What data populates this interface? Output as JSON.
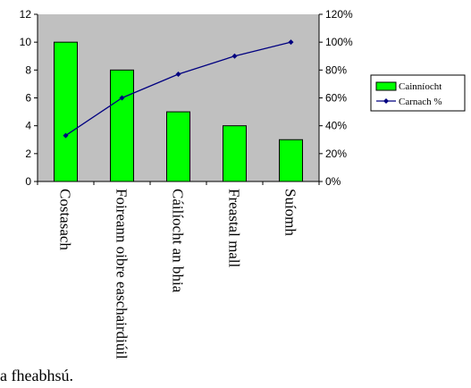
{
  "chart_data": {
    "type": "bar",
    "categories": [
      "Costasach",
      "Foireann oibre easchairdiúil",
      "Cáilíocht an bhia",
      "Freastal mall",
      "Suíomh"
    ],
    "series": [
      {
        "name": "Cainníocht",
        "type": "bar",
        "axis": "left",
        "color": "#00ff00",
        "values": [
          10,
          8,
          5,
          4,
          3
        ]
      },
      {
        "name": "Carnach %",
        "type": "line",
        "axis": "right",
        "color": "#000080",
        "values": [
          33,
          60,
          77,
          90,
          100
        ]
      }
    ],
    "y_left": {
      "range": [
        0,
        12
      ],
      "ticks": [
        "0",
        "2",
        "4",
        "6",
        "8",
        "10",
        "12"
      ]
    },
    "y_right": {
      "range": [
        0,
        120
      ],
      "ticks": [
        "0%",
        "20%",
        "40%",
        "60%",
        "80%",
        "100%",
        "120%"
      ]
    },
    "plot_background": "#c0c0c0",
    "legend_position": "right",
    "title": "",
    "xlabel": "",
    "ylabel": ""
  },
  "footer_text": "a fheabhsú."
}
